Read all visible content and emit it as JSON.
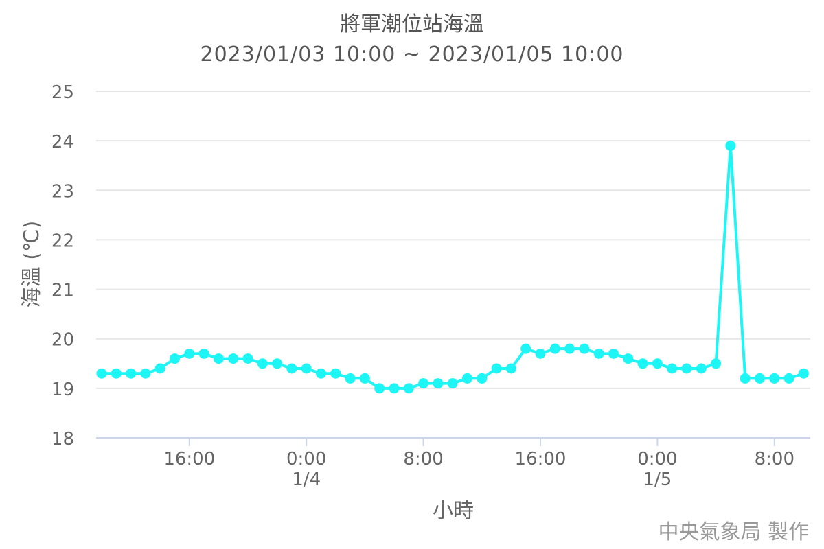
{
  "chart_data": {
    "type": "line",
    "title": "將軍潮位站海溫",
    "subtitle": "2023/01/03 10:00 ~ 2023/01/05 10:00",
    "xlabel": "小時",
    "ylabel": "海溫 (℃)",
    "ylim": [
      18,
      25
    ],
    "yticks": [
      "18",
      "19",
      "20",
      "21",
      "22",
      "23",
      "24",
      "25"
    ],
    "xticks": [
      {
        "label": "16:00",
        "date": "",
        "hour": 16
      },
      {
        "label": "0:00",
        "date": "1/4",
        "hour": 24
      },
      {
        "label": "8:00",
        "date": "",
        "hour": 32
      },
      {
        "label": "16:00",
        "date": "",
        "hour": 40
      },
      {
        "label": "0:00",
        "date": "1/5",
        "hour": 48
      },
      {
        "label": "8:00",
        "date": "",
        "hour": 56
      }
    ],
    "grid": true,
    "color": "#1ef5f5",
    "series": [
      {
        "x": [
          "2023-01-03 10:00",
          "2023-01-03 11:00",
          "2023-01-03 12:00",
          "2023-01-03 13:00",
          "2023-01-03 14:00",
          "2023-01-03 15:00",
          "2023-01-03 16:00",
          "2023-01-03 17:00",
          "2023-01-03 18:00",
          "2023-01-03 19:00",
          "2023-01-03 20:00",
          "2023-01-03 21:00",
          "2023-01-03 22:00",
          "2023-01-03 23:00",
          "2023-01-04 00:00",
          "2023-01-04 01:00",
          "2023-01-04 02:00",
          "2023-01-04 03:00",
          "2023-01-04 04:00",
          "2023-01-04 05:00",
          "2023-01-04 06:00",
          "2023-01-04 07:00",
          "2023-01-04 08:00",
          "2023-01-04 09:00",
          "2023-01-04 10:00",
          "2023-01-04 11:00",
          "2023-01-04 12:00",
          "2023-01-04 13:00",
          "2023-01-04 14:00",
          "2023-01-04 15:00",
          "2023-01-04 16:00",
          "2023-01-04 17:00",
          "2023-01-04 18:00",
          "2023-01-04 19:00",
          "2023-01-04 20:00",
          "2023-01-04 21:00",
          "2023-01-04 22:00",
          "2023-01-04 23:00",
          "2023-01-05 00:00",
          "2023-01-05 01:00",
          "2023-01-05 02:00",
          "2023-01-05 03:00",
          "2023-01-05 04:00",
          "2023-01-05 05:00",
          "2023-01-05 06:00",
          "2023-01-05 07:00",
          "2023-01-05 08:00",
          "2023-01-05 09:00",
          "2023-01-05 10:00"
        ],
        "values": [
          19.3,
          19.3,
          19.3,
          19.3,
          19.4,
          19.6,
          19.7,
          19.7,
          19.6,
          19.6,
          19.6,
          19.5,
          19.5,
          19.4,
          19.4,
          19.3,
          19.3,
          19.2,
          19.2,
          19.0,
          19.0,
          19.0,
          19.1,
          19.1,
          19.1,
          19.2,
          19.2,
          19.4,
          19.4,
          19.8,
          19.7,
          19.8,
          19.8,
          19.8,
          19.7,
          19.7,
          19.6,
          19.5,
          19.5,
          19.4,
          19.4,
          19.4,
          19.5,
          23.9,
          19.2,
          19.2,
          19.2,
          19.2,
          19.3
        ]
      }
    ]
  },
  "credit": "中央氣象局 製作"
}
